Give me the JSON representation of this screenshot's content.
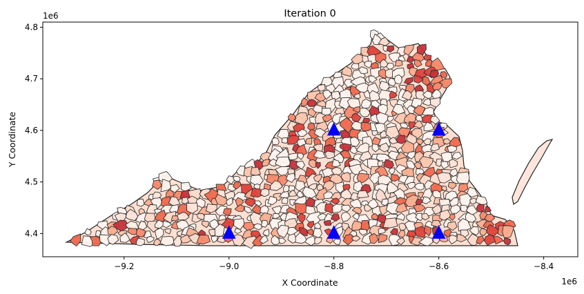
{
  "chart_data": {
    "type": "scatter",
    "title": "Iteration 0",
    "xlabel": "X Coordinate",
    "ylabel": "Y Coordinate",
    "x_offset_label": "1e6",
    "y_offset_label": "1e6",
    "xlim": [
      -9.355,
      -8.335
    ],
    "ylim": [
      4.355,
      4.81
    ],
    "x_ticks": [
      {
        "value": -9.2,
        "label": "−9.2"
      },
      {
        "value": -9.0,
        "label": "−9.0"
      },
      {
        "value": -8.8,
        "label": "−8.8"
      },
      {
        "value": -8.6,
        "label": "−8.6"
      },
      {
        "value": -8.4,
        "label": "−8.4"
      }
    ],
    "y_ticks": [
      {
        "value": 4.4,
        "label": "4.4"
      },
      {
        "value": 4.5,
        "label": "4.5"
      },
      {
        "value": 4.6,
        "label": "4.6"
      },
      {
        "value": 4.7,
        "label": "4.7"
      },
      {
        "value": 4.8,
        "label": "4.8"
      }
    ],
    "grid": false,
    "base_layer": "Virginia polygons",
    "colormap": "Reds",
    "series": [
      {
        "marker": "triangle",
        "color": "#0000ff",
        "points": [
          {
            "x": -8.8,
            "y": 4.6
          },
          {
            "x": -8.6,
            "y": 4.6
          },
          {
            "x": -9.0,
            "y": 4.4
          },
          {
            "x": -8.8,
            "y": 4.4
          },
          {
            "x": -8.6,
            "y": 4.4
          }
        ]
      }
    ]
  }
}
